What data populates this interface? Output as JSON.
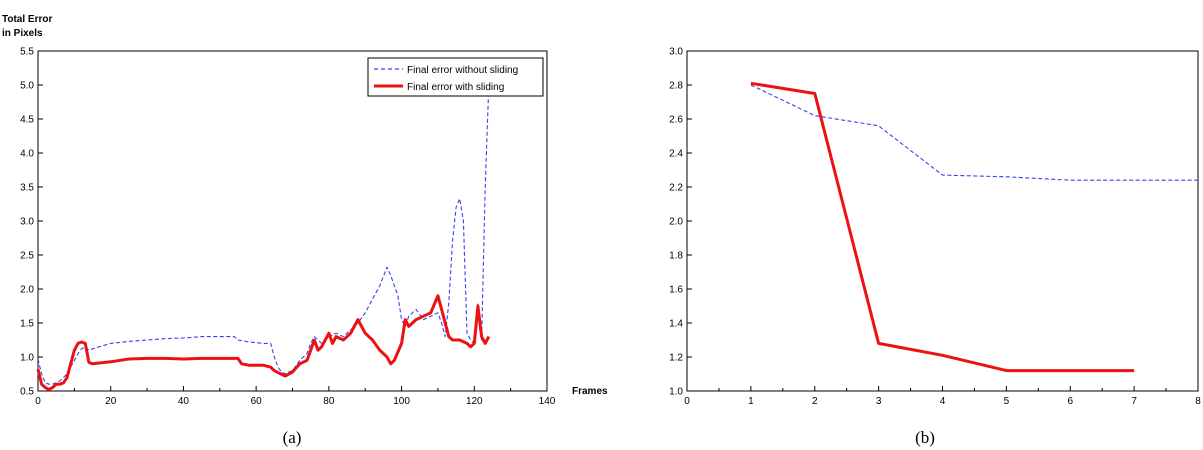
{
  "colors": {
    "without_sliding": "#3344ee",
    "with_sliding": "#ee1111",
    "axis": "#000000"
  },
  "chart_data": [
    {
      "type": "line",
      "caption": "(a)",
      "xlabel": "Frames",
      "ylabel": [
        "Total Error",
        "in Pixels"
      ],
      "xlim": [
        0,
        140
      ],
      "ylim": [
        0.5,
        5.5
      ],
      "xticks": [
        0,
        20,
        40,
        60,
        80,
        100,
        120,
        140
      ],
      "xtick_labels": [
        "0",
        "20",
        "40",
        "60",
        "80",
        "100",
        "120",
        "140"
      ],
      "yticks": [
        0.5,
        1.0,
        1.5,
        2.0,
        2.5,
        3.0,
        3.5,
        4.0,
        4.5,
        5.0,
        5.5
      ],
      "ytick_labels": [
        "0.5",
        "1.0",
        "1.5",
        "2.0",
        "2.5",
        "3.0",
        "3.5",
        "4.0",
        "4.5",
        "5.0",
        "5.5"
      ],
      "legend_position": "top-right",
      "series": [
        {
          "name": "Final error without sliding",
          "style": "dashed",
          "x": [
            0,
            1,
            2,
            3,
            4,
            5,
            6,
            7,
            8,
            9,
            10,
            11,
            12,
            13,
            14,
            15,
            20,
            25,
            30,
            35,
            40,
            45,
            50,
            54,
            55,
            58,
            62,
            64,
            65,
            66,
            67,
            68,
            69,
            70,
            72,
            74,
            75,
            76,
            78,
            80,
            82,
            84,
            86,
            88,
            90,
            92,
            94,
            96,
            97,
            98,
            99,
            100,
            101,
            102,
            104,
            106,
            108,
            110,
            111,
            112,
            113,
            114,
            115,
            116,
            117,
            118,
            119,
            120,
            121,
            122,
            123,
            124
          ],
          "y": [
            0.97,
            0.75,
            0.62,
            0.6,
            0.6,
            0.62,
            0.65,
            0.7,
            0.75,
            0.85,
            0.95,
            1.05,
            1.12,
            1.15,
            1.1,
            1.12,
            1.2,
            1.23,
            1.25,
            1.27,
            1.28,
            1.3,
            1.3,
            1.3,
            1.25,
            1.22,
            1.2,
            1.2,
            1.0,
            0.85,
            0.78,
            0.75,
            0.78,
            0.8,
            0.95,
            1.05,
            1.2,
            1.3,
            1.2,
            1.3,
            1.35,
            1.3,
            1.4,
            1.5,
            1.65,
            1.85,
            2.05,
            2.32,
            2.2,
            2.05,
            1.9,
            1.55,
            1.45,
            1.6,
            1.7,
            1.55,
            1.6,
            1.65,
            1.5,
            1.3,
            1.8,
            2.7,
            3.2,
            3.33,
            3.0,
            1.35,
            1.25,
            1.2,
            1.8,
            1.25,
            3.5,
            5.0
          ]
        },
        {
          "name": "Final error with sliding",
          "style": "solid",
          "x": [
            0,
            1,
            2,
            3,
            4,
            5,
            6,
            7,
            8,
            9,
            10,
            11,
            12,
            13,
            14,
            15,
            20,
            25,
            30,
            35,
            40,
            45,
            50,
            55,
            56,
            58,
            62,
            64,
            65,
            66,
            68,
            70,
            72,
            74,
            75,
            76,
            77,
            78,
            80,
            81,
            82,
            84,
            86,
            88,
            90,
            92,
            94,
            96,
            97,
            98,
            100,
            101,
            102,
            104,
            106,
            108,
            110,
            111,
            112,
            113,
            114,
            116,
            118,
            119,
            120,
            121,
            122,
            123,
            124
          ],
          "y": [
            0.82,
            0.6,
            0.55,
            0.52,
            0.55,
            0.6,
            0.6,
            0.62,
            0.7,
            0.9,
            1.1,
            1.2,
            1.22,
            1.2,
            0.92,
            0.9,
            0.93,
            0.97,
            0.98,
            0.98,
            0.97,
            0.98,
            0.98,
            0.98,
            0.9,
            0.88,
            0.88,
            0.85,
            0.8,
            0.77,
            0.72,
            0.78,
            0.9,
            0.95,
            1.1,
            1.25,
            1.1,
            1.15,
            1.35,
            1.2,
            1.3,
            1.25,
            1.35,
            1.55,
            1.35,
            1.25,
            1.1,
            1.0,
            0.9,
            0.95,
            1.2,
            1.55,
            1.45,
            1.55,
            1.6,
            1.65,
            1.9,
            1.7,
            1.5,
            1.3,
            1.25,
            1.25,
            1.2,
            1.15,
            1.2,
            1.75,
            1.3,
            1.2,
            1.3
          ]
        }
      ]
    },
    {
      "type": "line",
      "caption": "(b)",
      "xlim": [
        0,
        8
      ],
      "ylim": [
        1.0,
        3.0
      ],
      "xticks": [
        0,
        1,
        2,
        3,
        4,
        5,
        6,
        7,
        8
      ],
      "xtick_labels": [
        "0",
        "1",
        "2",
        "3",
        "4",
        "5",
        "6",
        "7",
        "8"
      ],
      "yticks": [
        1.0,
        1.2,
        1.4,
        1.6,
        1.8,
        2.0,
        2.2,
        2.4,
        2.6,
        2.8,
        3.0
      ],
      "ytick_labels": [
        "1.0",
        "1.2",
        "1.4",
        "1.6",
        "1.8",
        "2.0",
        "2.2",
        "2.4",
        "2.6",
        "2.8",
        "3.0"
      ],
      "series": [
        {
          "style": "dashed",
          "x": [
            1,
            2,
            3,
            4,
            5,
            6,
            7,
            8
          ],
          "y": [
            2.8,
            2.62,
            2.56,
            2.27,
            2.26,
            2.24,
            2.24,
            2.24
          ]
        },
        {
          "style": "solid",
          "x": [
            1,
            2,
            3,
            4,
            5,
            6,
            7
          ],
          "y": [
            2.81,
            2.75,
            1.28,
            1.21,
            1.12,
            1.12,
            1.12
          ]
        }
      ]
    }
  ]
}
